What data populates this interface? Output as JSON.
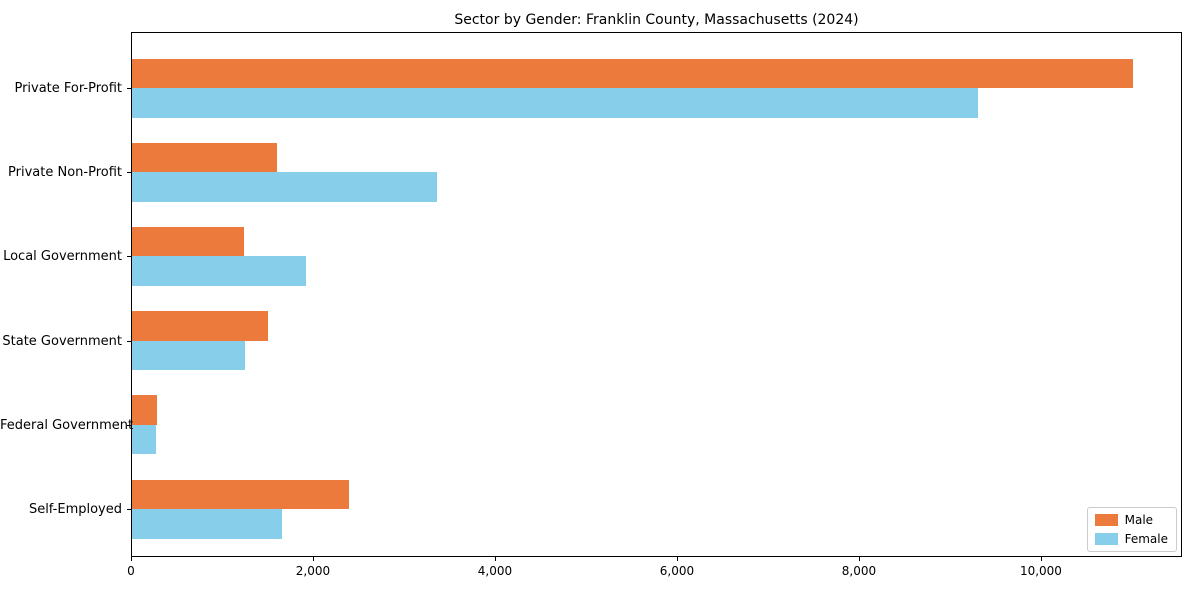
{
  "chart_data": {
    "type": "bar",
    "orientation": "horizontal",
    "title": "Sector by Gender: Franklin County, Massachusetts (2024)",
    "categories": [
      "Private For-Profit",
      "Private Non-Profit",
      "Local Government",
      "State Government",
      "Federal Government",
      "Self-Employed"
    ],
    "series": [
      {
        "name": "Male",
        "color": "#EC7A3C",
        "values": [
          11000,
          1590,
          1230,
          1490,
          280,
          2390
        ]
      },
      {
        "name": "Female",
        "color": "#87CEEB",
        "values": [
          9300,
          3350,
          1910,
          1240,
          260,
          1650
        ]
      }
    ],
    "xlabel": "",
    "ylabel": "",
    "xlim": [
      0,
      11550
    ],
    "xticks": [
      0,
      2000,
      4000,
      6000,
      8000,
      10000
    ],
    "xtick_labels": [
      "0",
      "2,000",
      "4,000",
      "6,000",
      "8,000",
      "10,000"
    ],
    "grid": false,
    "legend_position": "lower right",
    "axis_color": "#000000",
    "background_color": "#ffffff"
  }
}
